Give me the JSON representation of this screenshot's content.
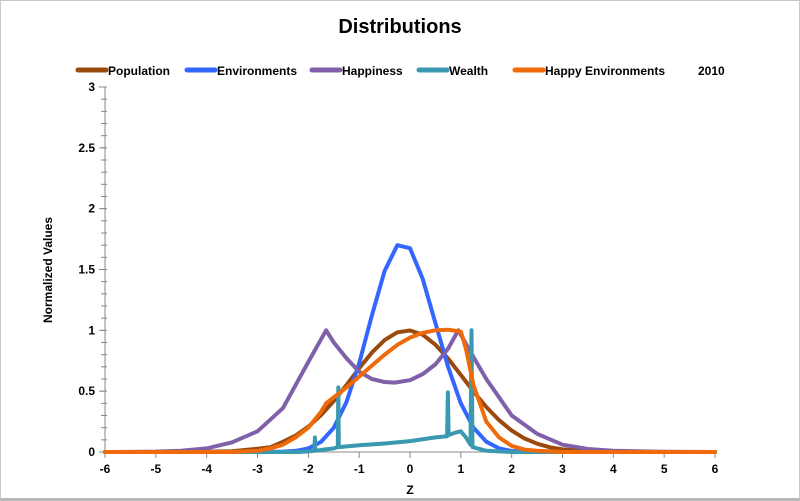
{
  "chart_data": {
    "type": "line",
    "title": "Distributions",
    "xlabel": "Z",
    "ylabel": "Normalized Values",
    "annotation": "2010",
    "xlim": [
      -6,
      6
    ],
    "ylim": [
      0,
      3
    ],
    "xticks": [
      "-6",
      "-5",
      "-4",
      "-3",
      "-2",
      "-1",
      "0",
      "1",
      "2",
      "3",
      "4",
      "5",
      "6"
    ],
    "yticks": [
      "0",
      "0.5",
      "1",
      "1.5",
      "2",
      "2.5",
      "3"
    ],
    "grid": false,
    "legend_position": "top",
    "series": [
      {
        "name": "Population",
        "color": "#9a4a0c",
        "x": [
          -6,
          -5,
          -4,
          -3.5,
          -3,
          -2.75,
          -2.5,
          -2.25,
          -2,
          -1.75,
          -1.5,
          -1.25,
          -1,
          -0.75,
          -0.5,
          -0.25,
          0,
          0.25,
          0.5,
          0.75,
          1,
          1.25,
          1.5,
          1.75,
          2,
          2.25,
          2.5,
          2.75,
          3,
          3.5,
          4,
          5,
          6
        ],
        "y": [
          0,
          0,
          0.002,
          0.006,
          0.027,
          0.039,
          0.084,
          0.135,
          0.208,
          0.303,
          0.419,
          0.551,
          0.689,
          0.817,
          0.92,
          0.984,
          0.999,
          0.964,
          0.882,
          0.768,
          0.634,
          0.497,
          0.37,
          0.262,
          0.176,
          0.112,
          0.068,
          0.039,
          0.021,
          0.006,
          0.001,
          0,
          0
        ]
      },
      {
        "name": "Environments",
        "color": "#3366ff",
        "x": [
          -6,
          -3,
          -2.5,
          -2.25,
          -2,
          -1.75,
          -1.5,
          -1.25,
          -1,
          -0.75,
          -0.5,
          -0.25,
          0,
          0.25,
          0.5,
          0.75,
          1,
          1.25,
          1.5,
          1.75,
          2,
          2.5,
          6
        ],
        "y": [
          0,
          0,
          0.003,
          0.009,
          0.03,
          0.083,
          0.199,
          0.411,
          0.731,
          1.123,
          1.488,
          1.7,
          1.675,
          1.423,
          1.06,
          0.7,
          0.4,
          0.2,
          0.085,
          0.03,
          0.008,
          0,
          0
        ]
      },
      {
        "name": "Happiness",
        "color": "#8060a8",
        "x": [
          -6,
          -5,
          -4.5,
          -4,
          -3.5,
          -3,
          -2.5,
          -2.25,
          -2,
          -1.65,
          -1.5,
          -1.25,
          -1,
          -0.75,
          -0.5,
          -0.3,
          0,
          0.25,
          0.5,
          0.75,
          0.95,
          1.25,
          1.5,
          2,
          2.5,
          3,
          3.5,
          4,
          5,
          6
        ],
        "y": [
          0,
          0.003,
          0.01,
          0.03,
          0.08,
          0.17,
          0.36,
          0.55,
          0.74,
          1.0,
          0.9,
          0.77,
          0.66,
          0.6,
          0.575,
          0.57,
          0.59,
          0.64,
          0.72,
          0.85,
          1.0,
          0.78,
          0.6,
          0.3,
          0.15,
          0.06,
          0.025,
          0.01,
          0.002,
          0
        ]
      },
      {
        "name": "Wealth",
        "color": "#3a98b0",
        "x": [
          -6,
          -2.2,
          -2,
          -1.88,
          -1.87,
          -1.86,
          -1.7,
          -1.5,
          -1.42,
          -1.41,
          -1.4,
          -1,
          -0.5,
          0,
          0.5,
          0.73,
          0.745,
          0.76,
          0.9,
          1,
          1.1,
          1.19,
          1.21,
          1.23,
          1.5,
          2,
          6
        ],
        "y": [
          0,
          0,
          0.005,
          0.01,
          0.12,
          0.01,
          0.02,
          0.03,
          0.04,
          0.53,
          0.04,
          0.055,
          0.07,
          0.09,
          0.12,
          0.13,
          0.49,
          0.14,
          0.16,
          0.17,
          0.12,
          0.06,
          1.0,
          0.04,
          0.01,
          0,
          0
        ]
      },
      {
        "name": "Happy Environments",
        "color": "#ee6a0a",
        "x": [
          -6,
          -3.5,
          -3,
          -2.75,
          -2.5,
          -2.25,
          -2,
          -1.75,
          -1.65,
          -1.5,
          -1.25,
          -1,
          -0.75,
          -0.5,
          -0.25,
          0,
          0.25,
          0.5,
          0.75,
          1,
          1.1,
          1.25,
          1.5,
          1.75,
          2,
          2.25,
          2.5,
          3,
          6
        ],
        "y": [
          0,
          0,
          0.01,
          0.03,
          0.06,
          0.12,
          0.2,
          0.33,
          0.4,
          0.45,
          0.53,
          0.62,
          0.71,
          0.8,
          0.88,
          0.94,
          0.98,
          1.0,
          1.005,
          0.99,
          0.85,
          0.55,
          0.25,
          0.12,
          0.05,
          0.02,
          0.01,
          0,
          0
        ]
      }
    ]
  }
}
